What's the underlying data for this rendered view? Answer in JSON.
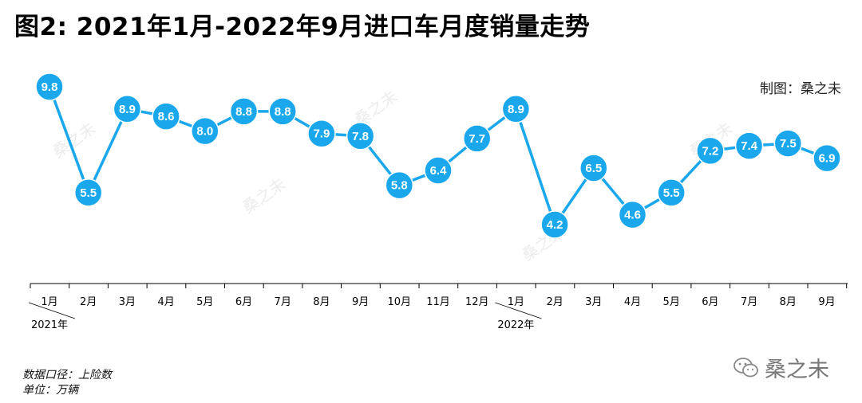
{
  "title": "图2: 2021年1月-2022年9月进口车月度销量走势",
  "credit": "制图：桑之未",
  "notes": {
    "source": "数据口径：上险数",
    "unit": "单位：万辆"
  },
  "watermark": {
    "icon": "wechat-icon",
    "text": "桑之未"
  },
  "colors": {
    "line": "#1aa7ec",
    "marker": "#1aa7ec",
    "label": "#ffffff",
    "axis": "#000000"
  },
  "chart_data": {
    "type": "line",
    "title": "",
    "xlabel": "",
    "ylabel": "",
    "categories": [
      "1月",
      "2月",
      "3月",
      "4月",
      "5月",
      "6月",
      "7月",
      "8月",
      "9月",
      "10月",
      "11月",
      "12月",
      "1月",
      "2月",
      "3月",
      "4月",
      "5月",
      "6月",
      "7月",
      "8月",
      "9月"
    ],
    "year_labels": [
      {
        "label": "2021年",
        "start_index": 0
      },
      {
        "label": "2022年",
        "start_index": 12
      }
    ],
    "values": [
      9.8,
      5.5,
      8.9,
      8.6,
      8.0,
      8.8,
      8.8,
      7.9,
      7.8,
      5.8,
      6.4,
      7.7,
      8.9,
      4.2,
      6.5,
      4.6,
      5.5,
      7.2,
      7.4,
      7.5,
      6.9
    ],
    "value_labels": [
      "9.8",
      "5.5",
      "8.9",
      "8.6",
      "8.0",
      "8.8",
      "8.8",
      "7.9",
      "7.8",
      "5.8",
      "6.4",
      "7.7",
      "8.9",
      "4.2",
      "6.5",
      "4.6",
      "5.5",
      "7.2",
      "7.4",
      "7.5",
      "6.9"
    ],
    "ylim": [
      0,
      10.5
    ],
    "grid": false,
    "legend": "none"
  }
}
